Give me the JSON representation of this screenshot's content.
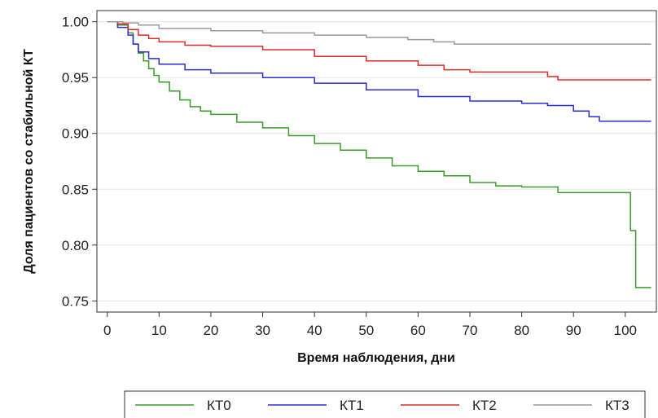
{
  "chart_data": {
    "type": "line",
    "xlabel": "Время наблюдения, дни",
    "ylabel": "Доля пациентов со стабильной КТ",
    "xlim": [
      -2,
      106
    ],
    "ylim": [
      0.74,
      1.01
    ],
    "x_ticks": [
      0,
      10,
      20,
      30,
      40,
      50,
      60,
      70,
      80,
      90,
      100
    ],
    "y_ticks": [
      0.75,
      0.8,
      0.85,
      0.9,
      0.95,
      1.0
    ],
    "y_tick_labels": [
      "0.75",
      "0.80",
      "0.85",
      "0.90",
      "0.95",
      "1.00"
    ],
    "grid": true,
    "legend_position": "bottom",
    "series": [
      {
        "name": "КТ0",
        "color": "#3a9a2a",
        "x": [
          0,
          2,
          4,
          5,
          6,
          7,
          8,
          9,
          10,
          12,
          14,
          16,
          18,
          20,
          25,
          30,
          35,
          40,
          45,
          50,
          55,
          60,
          65,
          70,
          75,
          80,
          87,
          100,
          101,
          102,
          105
        ],
        "y": [
          1.0,
          0.997,
          0.99,
          0.98,
          0.972,
          0.965,
          0.958,
          0.952,
          0.946,
          0.938,
          0.93,
          0.924,
          0.92,
          0.917,
          0.91,
          0.905,
          0.898,
          0.891,
          0.885,
          0.878,
          0.871,
          0.866,
          0.862,
          0.856,
          0.853,
          0.852,
          0.847,
          0.847,
          0.813,
          0.762,
          0.762
        ]
      },
      {
        "name": "КТ1",
        "color": "#2b2bdc",
        "x": [
          0,
          2,
          4,
          5,
          6,
          8,
          10,
          15,
          20,
          30,
          40,
          50,
          60,
          70,
          80,
          85,
          90,
          93,
          95,
          105
        ],
        "y": [
          1.0,
          0.995,
          0.988,
          0.98,
          0.973,
          0.967,
          0.962,
          0.957,
          0.954,
          0.95,
          0.945,
          0.939,
          0.933,
          0.929,
          0.927,
          0.925,
          0.92,
          0.915,
          0.911,
          0.911
        ]
      },
      {
        "name": "КТ2",
        "color": "#e02a2a",
        "x": [
          0,
          2,
          4,
          6,
          8,
          10,
          15,
          20,
          30,
          40,
          50,
          60,
          65,
          70,
          85,
          87,
          105
        ],
        "y": [
          1.0,
          0.998,
          0.993,
          0.988,
          0.985,
          0.982,
          0.979,
          0.978,
          0.975,
          0.969,
          0.965,
          0.961,
          0.957,
          0.955,
          0.951,
          0.948,
          0.948
        ]
      },
      {
        "name": "КТ3",
        "color": "#9a9a9a",
        "x": [
          0,
          3,
          6,
          10,
          20,
          30,
          40,
          50,
          58,
          63,
          67,
          75,
          105
        ],
        "y": [
          1.0,
          0.999,
          0.997,
          0.994,
          0.992,
          0.99,
          0.988,
          0.986,
          0.984,
          0.982,
          0.98,
          0.98,
          0.98
        ]
      }
    ]
  }
}
